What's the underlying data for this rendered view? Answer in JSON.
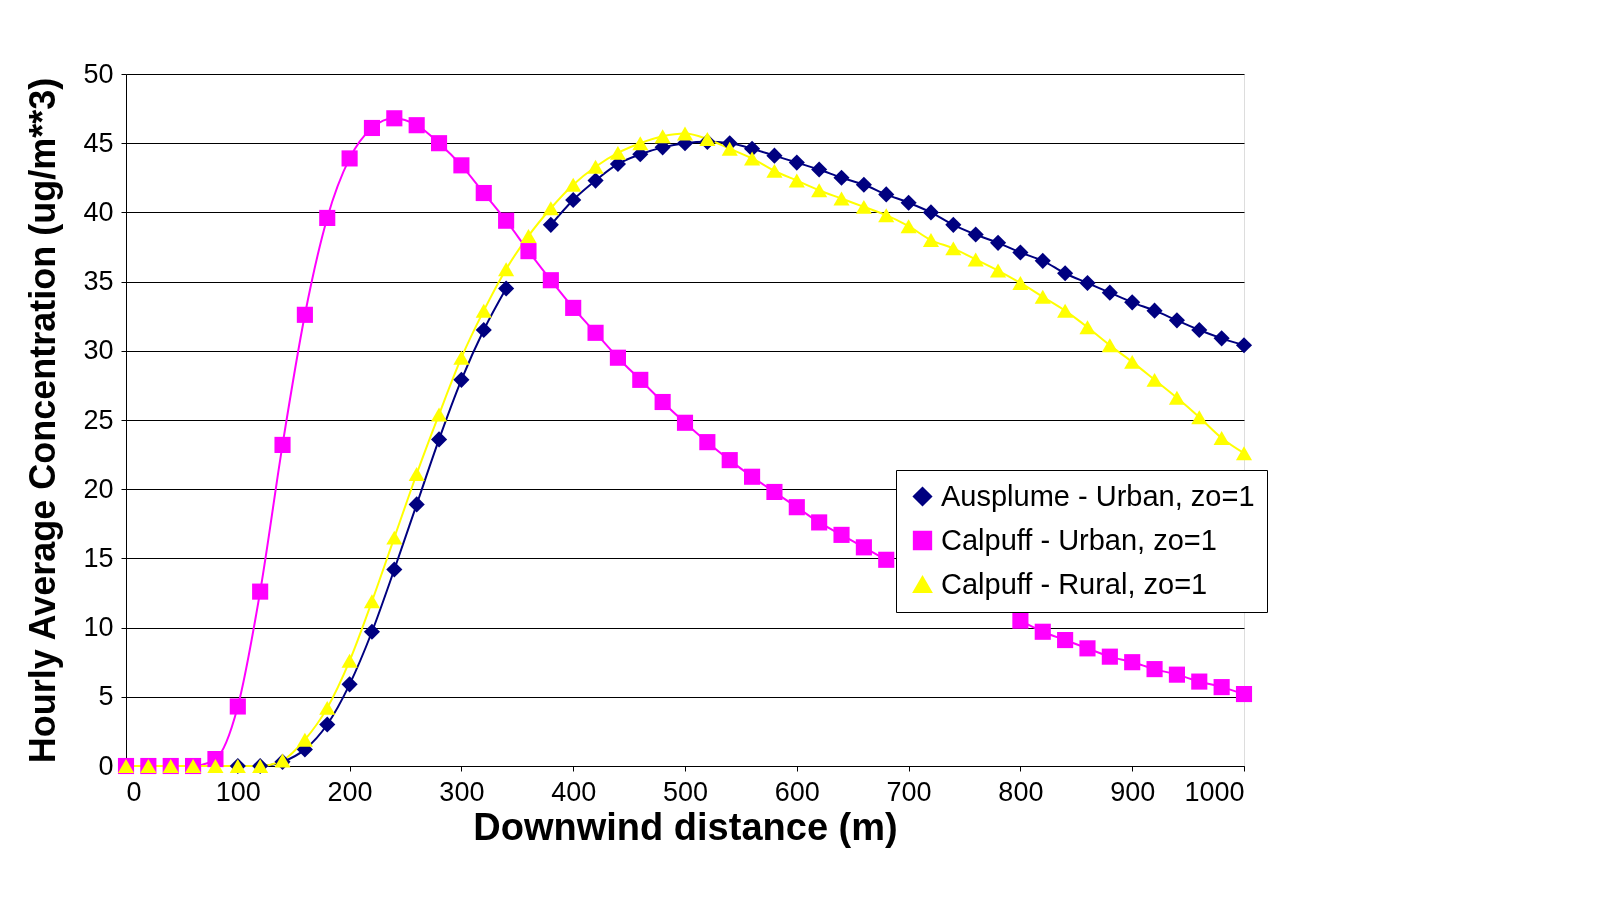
{
  "chart_data": {
    "type": "line",
    "xlabel": "Downwind distance (m)",
    "ylabel": "Hourly Average Concentration (ug/m**3)",
    "x": [
      0,
      20,
      40,
      60,
      80,
      100,
      120,
      140,
      160,
      180,
      200,
      220,
      240,
      260,
      280,
      300,
      320,
      340,
      360,
      380,
      400,
      420,
      440,
      460,
      480,
      500,
      520,
      540,
      560,
      580,
      600,
      620,
      640,
      660,
      680,
      700,
      720,
      740,
      760,
      780,
      800,
      820,
      840,
      860,
      880,
      900,
      920,
      940,
      960,
      980,
      1000
    ],
    "series": [
      {
        "name": "Ausplume - Urban, zo=1",
        "color": "#000080",
        "marker": "diamond",
        "values": [
          null,
          null,
          null,
          null,
          null,
          0,
          0,
          0.3,
          1.2,
          3.0,
          5.9,
          9.7,
          14.2,
          18.9,
          23.6,
          27.9,
          31.5,
          34.5,
          null,
          39.1,
          40.9,
          42.3,
          43.5,
          44.2,
          44.7,
          45.0,
          45.1,
          45.0,
          44.6,
          44.1,
          43.6,
          43.1,
          42.5,
          42.0,
          41.3,
          40.7,
          40.0,
          39.1,
          38.4,
          37.8,
          37.1,
          36.5,
          35.6,
          34.9,
          34.2,
          33.5,
          32.9,
          32.2,
          31.5,
          30.9,
          30.4
        ]
      },
      {
        "name": "Calpuff - Urban, zo=1",
        "color": "#ff00ff",
        "marker": "square",
        "values": [
          0,
          0,
          0,
          0,
          0.5,
          4.3,
          12.6,
          23.2,
          32.6,
          39.6,
          43.9,
          46.1,
          46.8,
          46.3,
          45.0,
          43.4,
          41.4,
          39.4,
          37.2,
          35.1,
          33.1,
          31.3,
          29.5,
          27.9,
          26.3,
          24.8,
          23.4,
          22.1,
          20.9,
          19.8,
          18.7,
          17.6,
          16.7,
          15.8,
          14.9,
          null,
          null,
          null,
          null,
          null,
          10.5,
          9.7,
          9.1,
          8.5,
          7.9,
          7.5,
          7.0,
          6.6,
          6.1,
          5.7,
          5.2
        ]
      },
      {
        "name": "Calpuff - Rural, zo=1",
        "color": "#ffff00",
        "marker": "triangle",
        "values": [
          0,
          0,
          0,
          0,
          0,
          0,
          0,
          0.4,
          1.9,
          4.2,
          7.6,
          11.9,
          16.5,
          21.1,
          25.4,
          29.5,
          32.9,
          35.9,
          38.3,
          40.3,
          42.0,
          43.3,
          44.3,
          45.0,
          45.5,
          45.7,
          45.3,
          44.6,
          43.9,
          43.0,
          42.3,
          41.6,
          41.0,
          40.4,
          39.8,
          39.0,
          38.0,
          37.4,
          36.6,
          35.8,
          34.9,
          33.9,
          32.9,
          31.7,
          30.4,
          29.2,
          27.9,
          26.6,
          25.2,
          23.7,
          22.6
        ]
      }
    ],
    "xlim": [
      0,
      1000
    ],
    "xticks": [
      0,
      100,
      200,
      300,
      400,
      500,
      600,
      700,
      800,
      900,
      1000
    ],
    "ylim": [
      0,
      50
    ],
    "yticks": [
      0,
      5,
      10,
      15,
      20,
      25,
      30,
      35,
      40,
      45,
      50
    ],
    "grid": "y",
    "legend": "right",
    "line_style": "solid"
  }
}
